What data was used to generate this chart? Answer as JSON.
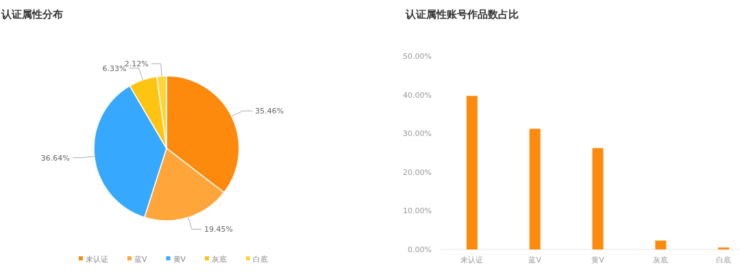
{
  "chart_data": [
    {
      "type": "pie",
      "title": "认证属性分布",
      "categories": [
        "未认证",
        "蓝V",
        "黄V",
        "灰底",
        "白底"
      ],
      "values": [
        35.46,
        19.45,
        36.64,
        6.33,
        2.12
      ],
      "colors": [
        "#fd8a0c",
        "#ffa53a",
        "#36a9fe",
        "#ffc312",
        "#ffd43b"
      ],
      "value_labels": [
        "35.46%",
        "19.45%",
        "36.64%",
        "6.33%",
        "2.12%"
      ],
      "legend": "bottom"
    },
    {
      "type": "bar",
      "title": "认证属性账号作品数占比",
      "categories": [
        "未认证",
        "蓝V",
        "黄V",
        "灰底",
        "白底"
      ],
      "values": [
        39.7,
        31.2,
        26.2,
        2.3,
        0.5
      ],
      "color": "#fd8a0c",
      "ylim": [
        0,
        50
      ],
      "yticks": [
        {
          "value": 0,
          "label": "0.00%"
        },
        {
          "value": 10,
          "label": "10.00%"
        },
        {
          "value": 20,
          "label": "20.00%"
        },
        {
          "value": 30,
          "label": "30.00%"
        },
        {
          "value": 40,
          "label": "40.00%"
        },
        {
          "value": 50,
          "label": "50.00%"
        }
      ],
      "grid": false
    }
  ]
}
